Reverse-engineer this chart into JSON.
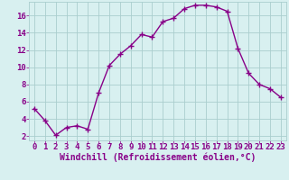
{
  "x": [
    0,
    1,
    2,
    3,
    4,
    5,
    6,
    7,
    8,
    9,
    10,
    11,
    12,
    13,
    14,
    15,
    16,
    17,
    18,
    19,
    20,
    21,
    22,
    23
  ],
  "y": [
    5.2,
    3.8,
    2.1,
    3.0,
    3.2,
    2.8,
    7.0,
    10.2,
    11.5,
    12.5,
    13.8,
    13.5,
    15.3,
    15.7,
    16.8,
    17.2,
    17.2,
    17.0,
    16.5,
    12.2,
    9.3,
    8.0,
    7.5,
    6.5
  ],
  "line_color": "#880088",
  "marker": "+",
  "marker_size": 4,
  "marker_linewidth": 1.0,
  "bg_color": "#d8f0f0",
  "grid_color": "#aacece",
  "xlabel": "Windchill (Refroidissement éolien,°C)",
  "xlim": [
    -0.5,
    23.5
  ],
  "ylim": [
    1.5,
    17.6
  ],
  "yticks": [
    2,
    4,
    6,
    8,
    10,
    12,
    14,
    16
  ],
  "xticks": [
    0,
    1,
    2,
    3,
    4,
    5,
    6,
    7,
    8,
    9,
    10,
    11,
    12,
    13,
    14,
    15,
    16,
    17,
    18,
    19,
    20,
    21,
    22,
    23
  ],
  "tick_color": "#880088",
  "label_color": "#880088",
  "font_size": 6.5,
  "xlabel_font_size": 7.0,
  "linewidth": 1.0
}
